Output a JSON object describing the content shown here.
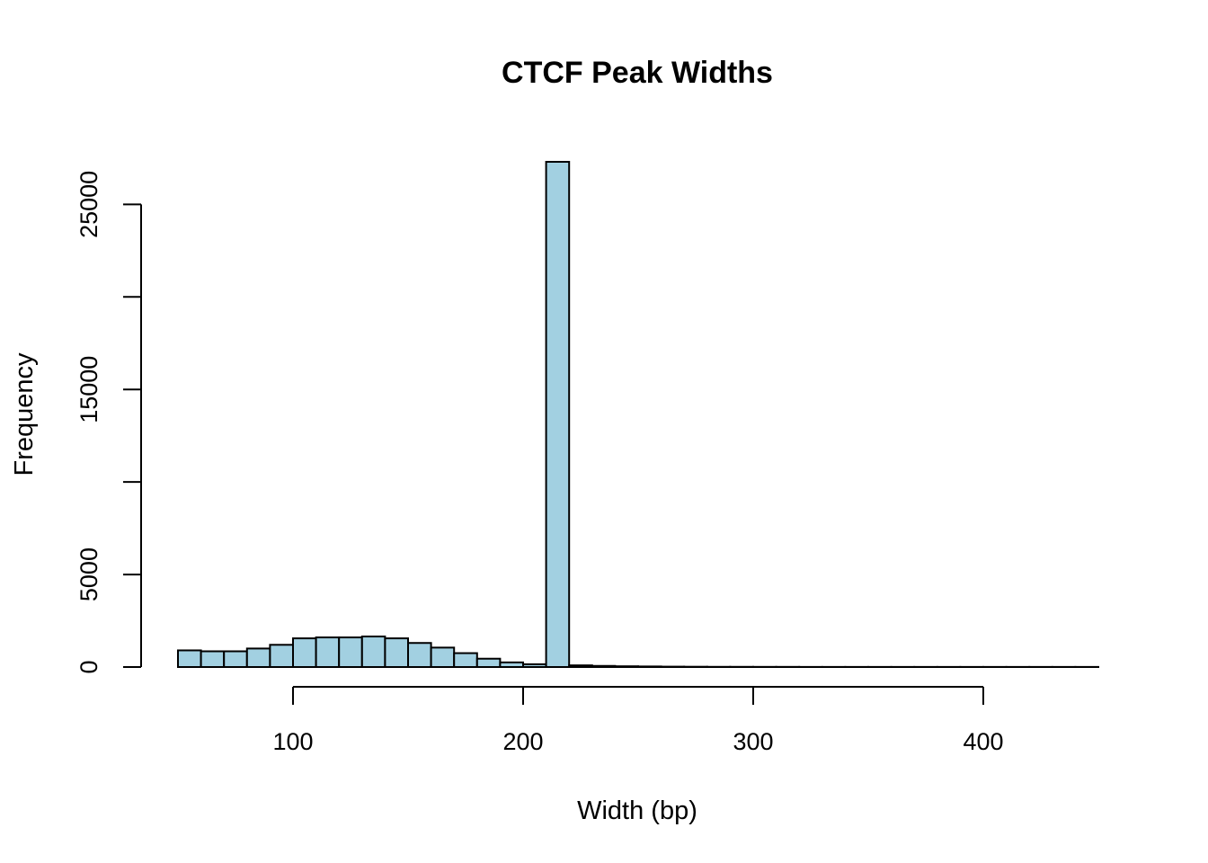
{
  "chart_data": {
    "type": "bar",
    "title": "CTCF Peak Widths",
    "xlabel": "Width (bp)",
    "ylabel": "Frequency",
    "bar_color": "#A2D0E1",
    "bin_width": 10,
    "bin_starts": [
      50,
      60,
      70,
      80,
      90,
      100,
      110,
      120,
      130,
      140,
      150,
      160,
      170,
      180,
      190,
      200,
      210,
      220,
      230,
      240,
      250,
      260,
      270,
      280,
      290,
      300,
      310,
      320,
      330,
      340,
      350,
      360,
      370,
      380,
      390,
      400,
      410,
      420,
      430,
      440
    ],
    "values": [
      900,
      850,
      850,
      1000,
      1200,
      1550,
      1600,
      1600,
      1650,
      1550,
      1300,
      1050,
      750,
      450,
      250,
      150,
      27300,
      90,
      60,
      40,
      30,
      20,
      15,
      10,
      10,
      8,
      8,
      5,
      5,
      5,
      5,
      5,
      5,
      5,
      5,
      5,
      5,
      5,
      5,
      5
    ],
    "xlim": [
      50,
      450
    ],
    "ylim": [
      0,
      27300
    ],
    "x_ticks": [
      100,
      200,
      300,
      400
    ],
    "x_tick_labels": [
      "100",
      "200",
      "300",
      "400"
    ],
    "y_ticks": [
      0,
      5000,
      10000,
      15000,
      20000,
      25000
    ],
    "y_tick_labels": [
      "0",
      "5000",
      "",
      "15000",
      "",
      "25000"
    ],
    "grid": false
  }
}
